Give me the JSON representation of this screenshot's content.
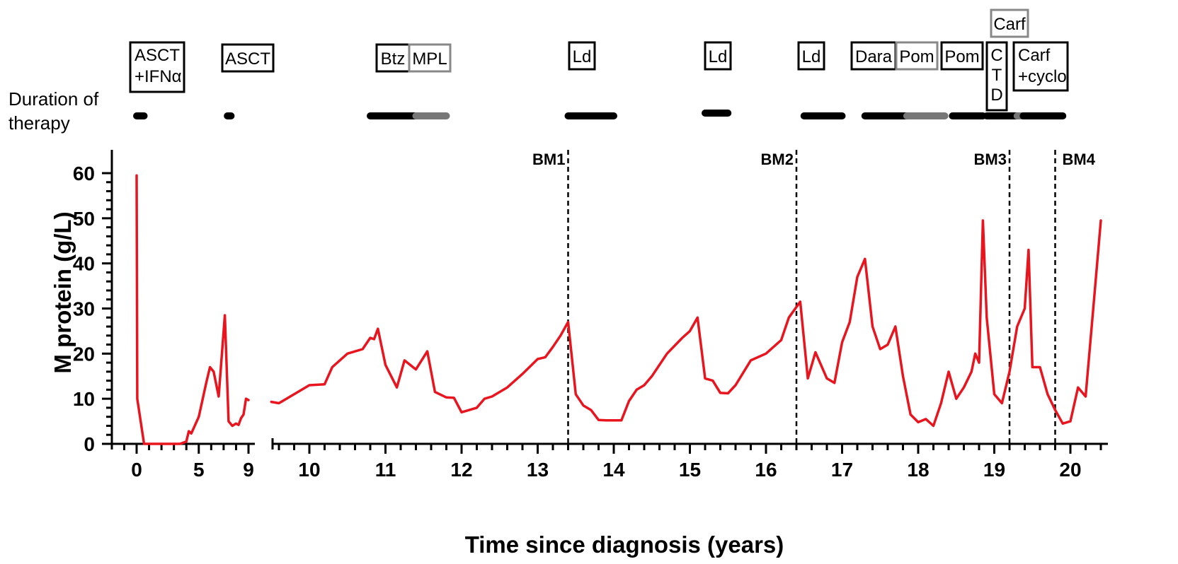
{
  "chart_data": {
    "type": "line",
    "xlabel": "Time since diagnosis (years)",
    "ylabel": "M protein (g/L)",
    "ylim": [
      0,
      60
    ],
    "yticks": [
      0,
      10,
      20,
      30,
      40,
      50,
      60
    ],
    "x_axis_segments": [
      {
        "xlim": [
          0,
          9
        ],
        "ticks": [
          0,
          5,
          9
        ]
      },
      {
        "xlim": [
          10,
          20
        ],
        "ticks": [
          10,
          11,
          12,
          13,
          14,
          15,
          16,
          17,
          18,
          19,
          20
        ]
      }
    ],
    "line_color": "#e8141e",
    "series": [
      {
        "segment": 0,
        "x": [
          0,
          0.05,
          0.6,
          1.5,
          2.5,
          3.5,
          4.0,
          4.2,
          4.4,
          5.0,
          5.6,
          5.9,
          6.2,
          6.6,
          7.1,
          7.4,
          7.7,
          8.0,
          8.2,
          8.4,
          8.6,
          8.8,
          9.0
        ],
        "values": [
          59.5,
          10.0,
          0.0,
          0.0,
          0.0,
          0.0,
          0.5,
          2.8,
          2.3,
          6.0,
          13.5,
          17.0,
          16.0,
          10.5,
          28.5,
          5.0,
          4.0,
          4.5,
          4.2,
          5.7,
          6.5,
          10.0,
          9.7
        ]
      },
      {
        "segment": 1,
        "x": [
          9.5,
          9.6,
          10.0,
          10.2,
          10.3,
          10.5,
          10.7,
          10.8,
          10.85,
          10.9,
          11.0,
          11.15,
          11.25,
          11.4,
          11.55,
          11.65,
          11.8,
          11.9,
          12.0,
          12.2,
          12.3,
          12.4,
          12.6,
          12.8,
          13.0,
          13.1,
          13.2,
          13.3,
          13.4,
          13.5,
          13.6,
          13.7,
          13.8,
          13.9,
          14.1,
          14.2,
          14.3,
          14.4,
          14.5,
          14.7,
          14.9,
          15.0,
          15.1,
          15.2,
          15.3,
          15.4,
          15.5,
          15.6,
          15.8,
          16.0,
          16.2,
          16.3,
          16.45,
          16.55,
          16.65,
          16.8,
          16.9,
          17.0,
          17.1,
          17.2,
          17.3,
          17.4,
          17.5,
          17.6,
          17.7,
          17.8,
          17.9,
          18.0,
          18.1,
          18.2,
          18.3,
          18.4,
          18.5,
          18.6,
          18.7,
          18.75,
          18.8,
          18.85,
          18.9,
          19.0,
          19.1,
          19.2,
          19.3,
          19.4,
          19.45,
          19.5,
          19.6,
          19.7,
          19.8,
          19.9,
          20.0,
          20.1,
          20.2,
          20.3,
          20.4
        ],
        "values": [
          9.3,
          9.0,
          13.0,
          13.2,
          17.0,
          20.0,
          21.0,
          23.5,
          23.2,
          25.5,
          17.5,
          12.5,
          18.5,
          16.5,
          20.5,
          11.5,
          10.3,
          10.2,
          7.0,
          8.0,
          10.0,
          10.5,
          12.5,
          15.5,
          18.8,
          19.2,
          21.5,
          24.0,
          27.0,
          11.0,
          8.5,
          7.5,
          5.3,
          5.2,
          5.2,
          9.5,
          12.0,
          13.0,
          15.0,
          20.0,
          23.5,
          25.0,
          28.0,
          14.5,
          14.0,
          11.3,
          11.2,
          13.0,
          18.5,
          20.0,
          23.0,
          28.0,
          31.5,
          14.5,
          20.3,
          14.5,
          13.5,
          22.5,
          27.0,
          37.0,
          41.0,
          26.0,
          21.0,
          22.0,
          26.0,
          15.0,
          6.5,
          4.8,
          5.5,
          4.0,
          9.0,
          16.0,
          10.0,
          12.5,
          16.0,
          20.0,
          18.0,
          49.5,
          28.0,
          11.0,
          9.0,
          16.0,
          26.0,
          30.0,
          43.0,
          17.0,
          17.0,
          11.0,
          7.5,
          4.5,
          5.0,
          12.5,
          10.5,
          30.0,
          49.5
        ]
      }
    ],
    "vlines": [
      {
        "label": "BM1",
        "x": 13.4
      },
      {
        "label": "BM2",
        "x": 16.4
      },
      {
        "label": "BM3",
        "x": 19.2
      },
      {
        "label": "BM4",
        "x": 19.8
      }
    ],
    "therapy_header": {
      "label_line1": "Duration of",
      "label_line2": "therapy"
    },
    "therapies": [
      {
        "lines": [
          "ASCT",
          "+IFNα"
        ],
        "color": "#000000"
      },
      {
        "lines": [
          "ASCT"
        ],
        "color": "#000000"
      },
      {
        "lines": [
          "Btz"
        ],
        "color": "#000000"
      },
      {
        "lines": [
          "MPL"
        ],
        "color": "#888888"
      },
      {
        "lines": [
          "Ld"
        ],
        "color": "#000000"
      },
      {
        "lines": [
          "Ld"
        ],
        "color": "#000000"
      },
      {
        "lines": [
          "Ld"
        ],
        "color": "#000000"
      },
      {
        "lines": [
          "Dara"
        ],
        "color": "#000000"
      },
      {
        "lines": [
          "Pom"
        ],
        "color": "#888888"
      },
      {
        "lines": [
          "Pom"
        ],
        "color": "#000000"
      },
      {
        "lines": [
          "C",
          "T",
          "D"
        ],
        "color": "#000000"
      },
      {
        "lines": [
          "Carf"
        ],
        "color": "#888888"
      },
      {
        "lines": [
          "Carf",
          "+cyclo"
        ],
        "color": "#000000"
      }
    ],
    "durations": [
      {
        "start": 0,
        "end": 0.6,
        "segment": 0,
        "color": "#000000"
      },
      {
        "start": 7.3,
        "end": 7.6,
        "segment": 0,
        "color": "#000000"
      },
      {
        "start": 10.8,
        "end": 11.4,
        "segment": 1,
        "color": "#000000"
      },
      {
        "start": 11.4,
        "end": 11.8,
        "segment": 1,
        "color": "#777777"
      },
      {
        "start": 13.4,
        "end": 14.0,
        "segment": 1,
        "color": "#000000"
      },
      {
        "start": 15.2,
        "end": 15.5,
        "segment": 1,
        "color": "#000000"
      },
      {
        "start": 16.5,
        "end": 17.0,
        "segment": 1,
        "color": "#000000"
      },
      {
        "start": 17.3,
        "end": 17.85,
        "segment": 1,
        "color": "#000000"
      },
      {
        "start": 17.85,
        "end": 18.35,
        "segment": 1,
        "color": "#777777"
      },
      {
        "start": 18.45,
        "end": 18.85,
        "segment": 1,
        "color": "#000000"
      },
      {
        "start": 18.9,
        "end": 19.3,
        "segment": 1,
        "color": "#000000"
      },
      {
        "start": 19.3,
        "end": 19.38,
        "segment": 1,
        "color": "#777777"
      },
      {
        "start": 19.38,
        "end": 19.9,
        "segment": 1,
        "color": "#000000"
      }
    ]
  }
}
